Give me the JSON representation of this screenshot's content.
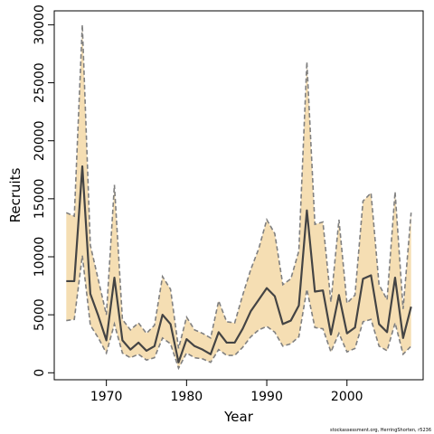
{
  "chart_data": {
    "type": "line",
    "title": "",
    "xlabel": "Year",
    "ylabel": "Recruits",
    "xlim": [
      1963.5,
      2009.5
    ],
    "ylim": [
      -600,
      31200
    ],
    "x_ticks": [
      1970,
      1980,
      1990,
      2000
    ],
    "y_ticks": [
      0,
      5000,
      10000,
      15000,
      20000,
      25000,
      30000
    ],
    "x_tick_labels": [
      "1970",
      "1980",
      "1990",
      "2000"
    ],
    "y_tick_labels": [
      "0",
      "5000",
      "10000",
      "15000",
      "20000",
      "25000",
      "30000"
    ],
    "grid": false,
    "colors": {
      "band": "#f5deb3",
      "estimate": "#444444",
      "bounds": "#808080"
    },
    "series": [
      {
        "role": "estimate",
        "x": [
          1965,
          1966,
          1967,
          1968,
          1969,
          1970,
          1971,
          1972,
          1973,
          1974,
          1975,
          1976,
          1977,
          1978,
          1979,
          1980,
          1981,
          1982,
          1983,
          1984,
          1985,
          1986,
          1987,
          1988,
          1989,
          1990,
          1991,
          1992,
          1993,
          1994,
          1995,
          1996,
          1997,
          1998,
          1999,
          2000,
          2001,
          2002,
          2003,
          2004,
          2005,
          2006,
          2007,
          2008
        ],
        "values": [
          7900,
          7900,
          17800,
          6800,
          4900,
          2800,
          8200,
          2800,
          2000,
          2600,
          1900,
          2300,
          5000,
          4200,
          900,
          2900,
          2300,
          2000,
          1600,
          3500,
          2600,
          2600,
          3800,
          5300,
          6300,
          7300,
          6600,
          4200,
          4500,
          5800,
          14000,
          7000,
          7100,
          3300,
          6700,
          3400,
          3900,
          8100,
          8400,
          4200,
          3500,
          8200,
          3000,
          5700
        ]
      },
      {
        "role": "upper-bound",
        "x": [
          1965,
          1966,
          1967,
          1968,
          1969,
          1970,
          1971,
          1972,
          1973,
          1974,
          1975,
          1976,
          1977,
          1978,
          1979,
          1980,
          1981,
          1982,
          1983,
          1984,
          1985,
          1986,
          1987,
          1988,
          1989,
          1990,
          1991,
          1992,
          1993,
          1994,
          1995,
          1996,
          1997,
          1998,
          1999,
          2000,
          2001,
          2002,
          2003,
          2004,
          2005,
          2006,
          2007,
          2008
        ],
        "values": [
          13800,
          13500,
          30000,
          11000,
          8000,
          5000,
          16200,
          4600,
          3700,
          4300,
          3400,
          4100,
          8300,
          7200,
          2100,
          4800,
          3700,
          3400,
          3000,
          6200,
          4400,
          4300,
          6700,
          8900,
          10700,
          13200,
          12000,
          7600,
          8100,
          10500,
          26800,
          12800,
          13000,
          6100,
          13200,
          6000,
          6700,
          14800,
          15500,
          7600,
          6300,
          15600,
          5500,
          13800
        ]
      },
      {
        "role": "lower-bound",
        "x": [
          1965,
          1966,
          1967,
          1968,
          1969,
          1970,
          1971,
          1972,
          1973,
          1974,
          1975,
          1976,
          1977,
          1978,
          1979,
          1980,
          1981,
          1982,
          1983,
          1984,
          1985,
          1986,
          1987,
          1988,
          1989,
          1990,
          1991,
          1992,
          1993,
          1994,
          1995,
          1996,
          1997,
          1998,
          1999,
          2000,
          2001,
          2002,
          2003,
          2004,
          2005,
          2006,
          2007,
          2008
        ],
        "values": [
          4500,
          4600,
          10100,
          4100,
          3000,
          1700,
          4200,
          1700,
          1300,
          1600,
          1100,
          1300,
          3000,
          2500,
          400,
          1700,
          1300,
          1200,
          900,
          2000,
          1500,
          1500,
          2200,
          3100,
          3700,
          4000,
          3500,
          2300,
          2500,
          3100,
          7200,
          3900,
          3800,
          1800,
          3400,
          1800,
          2100,
          4400,
          4600,
          2300,
          1900,
          4300,
          1600,
          2300
        ]
      }
    ]
  },
  "source_note": "stockassessment.org, HerringShorten, r5236"
}
